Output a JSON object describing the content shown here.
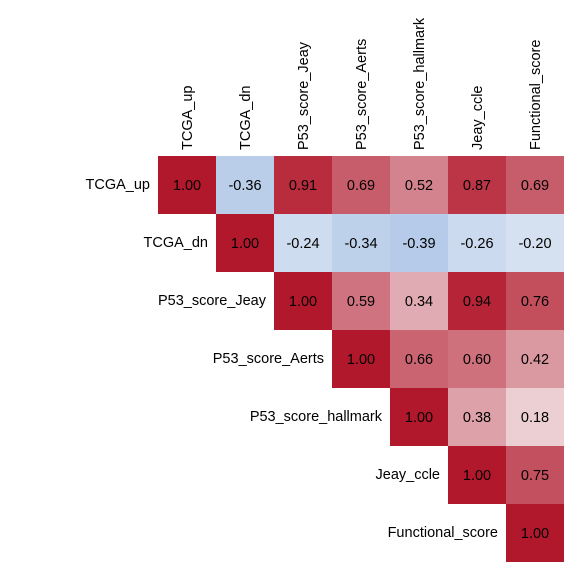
{
  "chart_data": {
    "type": "heatmap",
    "variables": [
      "TCGA_up",
      "TCGA_dn",
      "P53_score_Jeay",
      "P53_score_Aerts",
      "P53_score_hallmark",
      "Jeay_ccle",
      "Functional_score"
    ],
    "value_labels": [
      [
        "1.00",
        "-0.36",
        "0.91",
        "0.69",
        "0.52",
        "0.87",
        "0.69"
      ],
      [
        "",
        "1.00",
        "-0.24",
        "-0.34",
        "-0.39",
        "-0.26",
        "-0.20"
      ],
      [
        "",
        "",
        "1.00",
        "0.59",
        "0.34",
        "0.94",
        "0.76"
      ],
      [
        "",
        "",
        "",
        "1.00",
        "0.66",
        "0.60",
        "0.42"
      ],
      [
        "",
        "",
        "",
        "",
        "1.00",
        "0.38",
        "0.18"
      ],
      [
        "",
        "",
        "",
        "",
        "",
        "1.00",
        "0.75"
      ],
      [
        "",
        "",
        "",
        "",
        "",
        "",
        "1.00"
      ]
    ],
    "values": [
      [
        1.0,
        -0.36,
        0.91,
        0.69,
        0.52,
        0.87,
        0.69
      ],
      [
        null,
        1.0,
        -0.24,
        -0.34,
        -0.39,
        -0.26,
        -0.2
      ],
      [
        null,
        null,
        1.0,
        0.59,
        0.34,
        0.94,
        0.76
      ],
      [
        null,
        null,
        null,
        1.0,
        0.66,
        0.6,
        0.42
      ],
      [
        null,
        null,
        null,
        null,
        1.0,
        0.38,
        0.18
      ],
      [
        null,
        null,
        null,
        null,
        null,
        1.0,
        0.75
      ],
      [
        null,
        null,
        null,
        null,
        null,
        null,
        1.0
      ]
    ],
    "layout": "upper-triangle",
    "color_scale": {
      "negative": "#4d86d4",
      "neutral": "#f7f7f7",
      "positive": "#b2182b"
    },
    "range": [
      -1,
      1
    ],
    "grid": false,
    "legend": "none"
  }
}
